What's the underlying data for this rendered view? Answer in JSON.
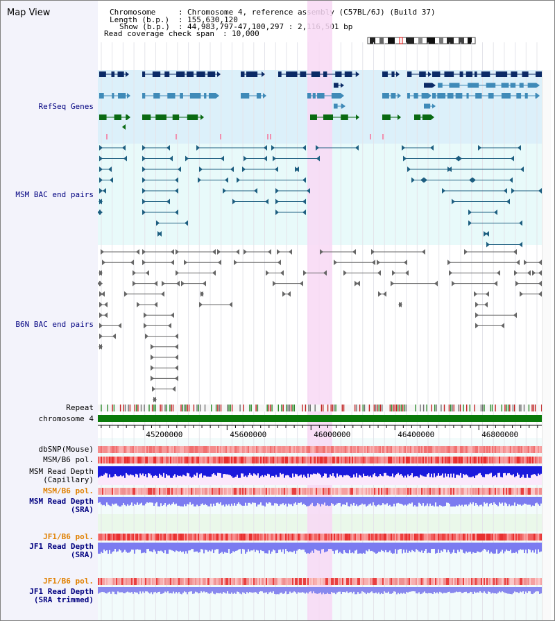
{
  "panel": {
    "title": "Map View"
  },
  "header": {
    "chromosome_label": "Chromosome",
    "chromosome_value": "Chromosome 4, reference assembly (C57BL/6J) (Build 37)",
    "length_label": "Length (b.p.)",
    "length_value": "155,630,120",
    "show_label": "Show (b.p.)",
    "show_value": "44,983,797-47,100,297 : 2,116,501 bp",
    "coverage_label": "Read coverage check span",
    "coverage_value": "10,000",
    "separator": ":"
  },
  "tracks": {
    "refseq": "RefSeq Genes",
    "msm_bac": "MSM BAC end pairs",
    "b6n_bac": "B6N BAC end pairs",
    "repeat": "Repeat",
    "chromosome": "chromosome 4",
    "dbsnp": "dbSNP(Mouse)",
    "msm_b6_pol_1": "MSM/B6 pol.",
    "msm_depth_cap_1": "MSM Read Depth",
    "msm_depth_cap_2": "(Capillary)",
    "msm_b6_pol_2": "MSM/B6 pol.",
    "msm_depth_sra_1": "MSM Read Depth",
    "msm_depth_sra_2": "(SRA)",
    "jf1_b6_pol_1": "JF1/B6 pol.",
    "jf1_depth_sra_1": "JF1 Read Depth",
    "jf1_depth_sra_2": "(SRA)",
    "jf1_b6_pol_2": "JF1/B6 pol.",
    "jf1_depth_trim_1": "JF1 Read Depth",
    "jf1_depth_trim_2": "(SRA trimmed)"
  },
  "axis": {
    "ticks": [
      "45200000",
      "45600000",
      "46000000",
      "46400000",
      "46800000"
    ],
    "range": [
      44983797,
      47100297
    ]
  },
  "colors": {
    "refseq_bg": "#dcf0fa",
    "msm_bg": "#e8fafa",
    "highlight": "#f8d8f4",
    "gene_dark": "#0b2a66",
    "gene_mid": "#3f8ab8",
    "gene_green": "#0a6a12",
    "bac": "#1d5e80",
    "b6n": "#666666",
    "chromosome": "#0a7a0a",
    "depth_blue": "#1a1adc",
    "depth_light": "#7b7bf0",
    "label_navy": "#000080",
    "label_orange": "#e08000"
  },
  "icons": {
    "ideogram": "chromosome-ideogram"
  }
}
